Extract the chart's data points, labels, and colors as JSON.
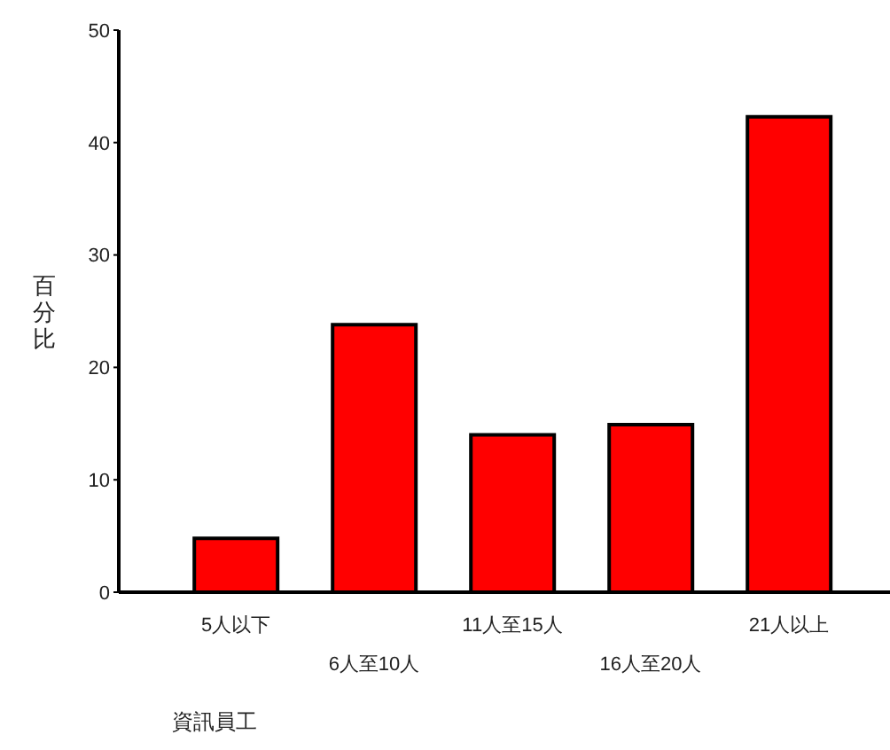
{
  "chart_data": {
    "type": "bar",
    "xlabel": "資訊員工",
    "ylabel": "百分比",
    "categories": [
      "5人以下",
      "6人至10人",
      "11人至15人",
      "16人至20人",
      "21人以上"
    ],
    "values": [
      4.8,
      23.8,
      14.0,
      14.9,
      42.3
    ],
    "color": "#ff0000",
    "ylim": [
      0,
      50
    ],
    "yticks": [
      0,
      10,
      20,
      30,
      40,
      50
    ],
    "grid": false,
    "legend": false
  }
}
